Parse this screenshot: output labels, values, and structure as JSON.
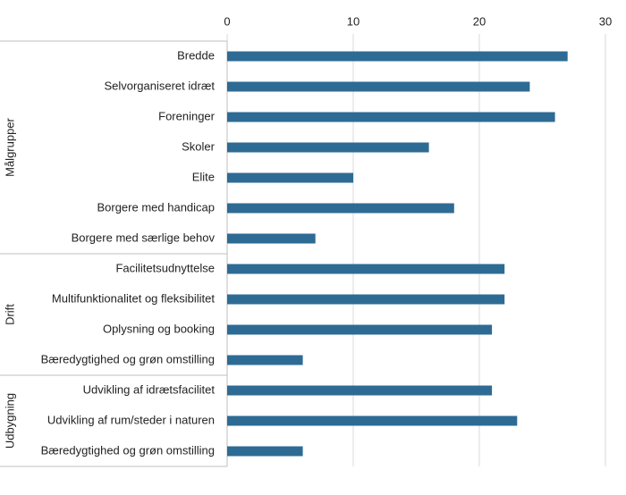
{
  "chart_data": {
    "type": "bar",
    "orientation": "horizontal",
    "color": "#2e6b94",
    "grid": true,
    "xlim": [
      0,
      30
    ],
    "xticks": [
      0,
      10,
      20,
      30
    ],
    "groups": [
      {
        "name": "Målgrupper",
        "categories": [
          "Bredde",
          "Selvorganiseret idræt",
          "Foreninger",
          "Skoler",
          "Elite",
          "Borgere med handicap",
          "Borgere med særlige behov"
        ],
        "values": [
          27,
          24,
          26,
          16,
          10,
          18,
          7
        ]
      },
      {
        "name": "Drift",
        "categories": [
          "Facilitetsudnyttelse",
          "Multifunktionalitet og fleksibilitet",
          "Oplysning og booking",
          "Bæredygtighed og grøn omstilling"
        ],
        "values": [
          22,
          22,
          21,
          6
        ]
      },
      {
        "name": "Udbygning",
        "categories": [
          "Udvikling af idrætsfacilitet",
          "Udvikling af rum/steder i naturen",
          "Bæredygtighed og grøn omstilling"
        ],
        "values": [
          21,
          23,
          6
        ]
      }
    ]
  }
}
